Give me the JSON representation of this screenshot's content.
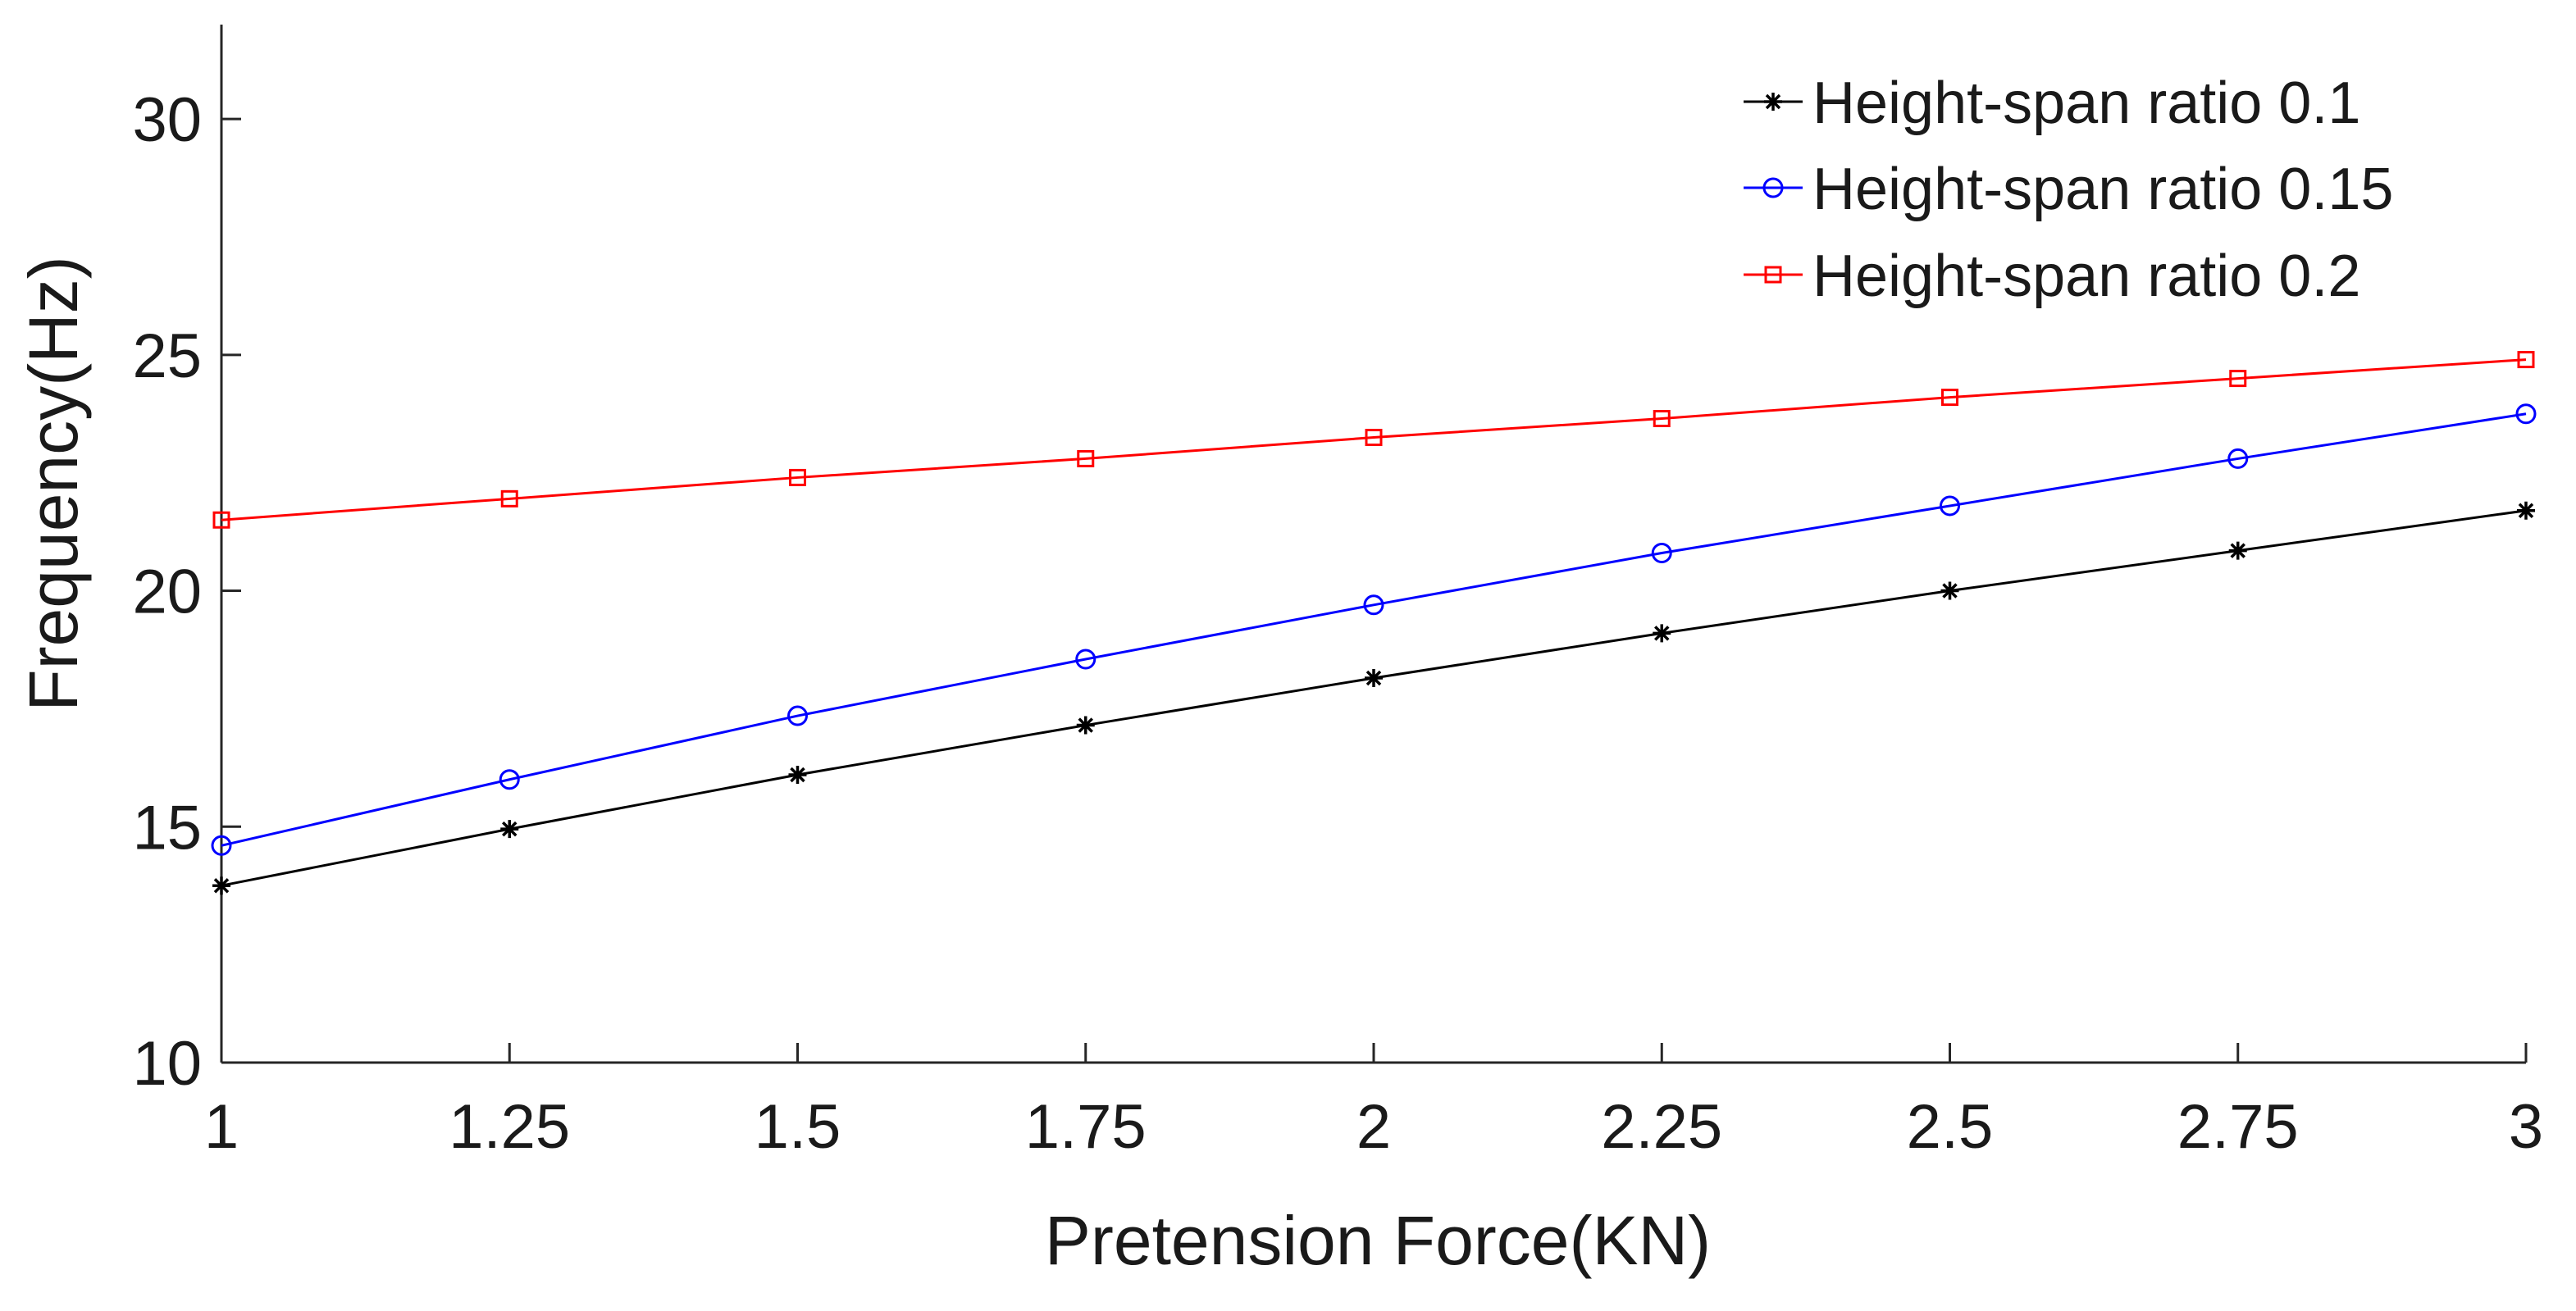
{
  "chart_data": {
    "type": "line",
    "title": "",
    "xlabel": "Pretension Force(KN)",
    "ylabel": "Frequency(Hz)",
    "xlim": [
      1,
      3
    ],
    "ylim": [
      10,
      32
    ],
    "x": [
      1,
      1.25,
      1.5,
      1.75,
      2,
      2.25,
      2.5,
      2.75,
      3
    ],
    "x_ticks": [
      1,
      1.25,
      1.5,
      1.75,
      2,
      2.25,
      2.5,
      2.75,
      3
    ],
    "x_tick_labels": [
      "1",
      "1.25",
      "1.5",
      "1.75",
      "2",
      "2.25",
      "2.5",
      "2.75",
      "3"
    ],
    "y_ticks": [
      10,
      15,
      20,
      25,
      30
    ],
    "y_tick_labels": [
      "10",
      "15",
      "20",
      "25",
      "30"
    ],
    "grid": false,
    "legend_position": "top-right",
    "series": [
      {
        "name": "Height-span ratio 0.1",
        "color": "#000000",
        "marker": "asterisk",
        "values": [
          13.75,
          14.95,
          16.1,
          17.15,
          18.15,
          19.1,
          20.0,
          20.85,
          21.7
        ]
      },
      {
        "name": "Height-span ratio 0.15",
        "color": "#0000ff",
        "marker": "circle",
        "values": [
          14.6,
          16.0,
          17.35,
          18.55,
          19.7,
          20.8,
          21.8,
          22.8,
          23.75
        ]
      },
      {
        "name": "Height-span ratio 0.2",
        "color": "#ff0000",
        "marker": "square",
        "values": [
          21.5,
          21.95,
          22.4,
          22.8,
          23.25,
          23.65,
          24.1,
          24.5,
          24.9
        ]
      }
    ]
  }
}
